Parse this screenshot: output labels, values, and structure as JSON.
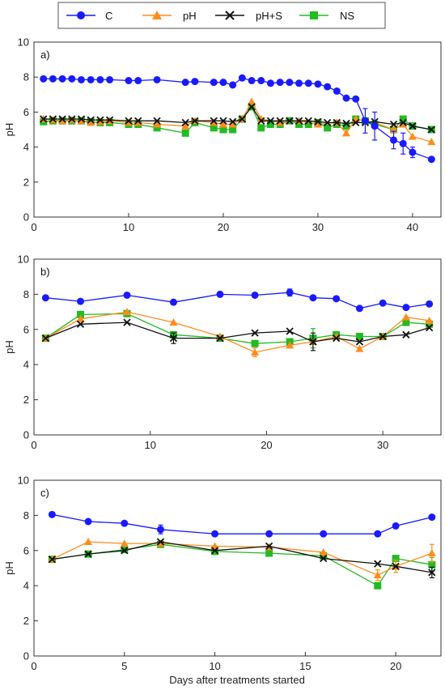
{
  "legend": [
    {
      "name": "C",
      "color": "#1a1aff",
      "marker": "circle"
    },
    {
      "name": "pH",
      "color": "#ff8c1a",
      "marker": "triangle"
    },
    {
      "name": "pH+S",
      "color": "#111111",
      "marker": "cross"
    },
    {
      "name": "NS",
      "color": "#22bb22",
      "marker": "square"
    }
  ],
  "x_title": "Days after treatments started",
  "chart_data": [
    {
      "type": "line",
      "panel_label": "a)",
      "ylabel": "pH",
      "xlim": [
        0,
        43
      ],
      "ylim": [
        0,
        10
      ],
      "xticks": [
        0,
        10,
        20,
        30,
        40
      ],
      "yticks": [
        0,
        2,
        4,
        6,
        8,
        10
      ],
      "grid": false,
      "series": [
        {
          "name": "C",
          "x": [
            1,
            2,
            3,
            4,
            5,
            6,
            7,
            8,
            10,
            11,
            13,
            16,
            17,
            19,
            20,
            21,
            22,
            23,
            24,
            25,
            26,
            27,
            28,
            29,
            30,
            31,
            32,
            33,
            34,
            35,
            36,
            38,
            39,
            40,
            42
          ],
          "y": [
            7.9,
            7.9,
            7.9,
            7.9,
            7.85,
            7.85,
            7.85,
            7.85,
            7.8,
            7.8,
            7.85,
            7.7,
            7.75,
            7.7,
            7.7,
            7.55,
            7.95,
            7.8,
            7.8,
            7.65,
            7.7,
            7.7,
            7.65,
            7.65,
            7.6,
            7.45,
            7.2,
            6.8,
            6.75,
            5.5,
            5.2,
            4.4,
            4.2,
            3.7,
            3.3
          ],
          "err": [
            0,
            0,
            0,
            0,
            0,
            0,
            0,
            0,
            0,
            0,
            0,
            0,
            0,
            0,
            0,
            0,
            0,
            0,
            0,
            0,
            0,
            0,
            0,
            0,
            0,
            0,
            0,
            0,
            0,
            0.7,
            0.8,
            0.5,
            0.6,
            0.3,
            0
          ]
        },
        {
          "name": "pH",
          "x": [
            1,
            2,
            3,
            4,
            5,
            6,
            7,
            8,
            10,
            11,
            13,
            16,
            17,
            19,
            20,
            21,
            22,
            23,
            24,
            26,
            28,
            30,
            32,
            33,
            34,
            36,
            38,
            39,
            40,
            42
          ],
          "y": [
            5.6,
            5.55,
            5.5,
            5.55,
            5.5,
            5.4,
            5.45,
            5.5,
            5.4,
            5.4,
            5.3,
            5.2,
            5.5,
            5.4,
            5.3,
            5.3,
            5.6,
            6.6,
            5.6,
            5.4,
            5.5,
            5.3,
            5.4,
            4.8,
            5.6,
            5.4,
            5.0,
            5.3,
            4.6,
            4.3
          ],
          "err": []
        },
        {
          "name": "pH+S",
          "x": [
            1,
            2,
            3,
            4,
            5,
            6,
            7,
            8,
            10,
            11,
            13,
            16,
            17,
            19,
            20,
            21,
            22,
            23,
            24,
            25,
            26,
            27,
            28,
            29,
            30,
            31,
            32,
            33,
            34,
            35,
            36,
            38,
            39,
            40,
            42
          ],
          "y": [
            5.6,
            5.6,
            5.6,
            5.6,
            5.6,
            5.55,
            5.55,
            5.55,
            5.5,
            5.5,
            5.5,
            5.4,
            5.5,
            5.5,
            5.5,
            5.45,
            5.6,
            6.3,
            5.5,
            5.5,
            5.5,
            5.5,
            5.5,
            5.5,
            5.45,
            5.4,
            5.4,
            5.35,
            5.4,
            5.4,
            5.45,
            5.3,
            5.4,
            5.2,
            5.0
          ],
          "err": []
        },
        {
          "name": "NS",
          "x": [
            1,
            2,
            3,
            4,
            5,
            6,
            7,
            8,
            10,
            11,
            13,
            16,
            17,
            19,
            20,
            21,
            22,
            23,
            24,
            25,
            26,
            27,
            28,
            29,
            30,
            31,
            32,
            33,
            34,
            35,
            36,
            38,
            39,
            40,
            42
          ],
          "y": [
            5.45,
            5.5,
            5.5,
            5.5,
            5.5,
            5.45,
            5.4,
            5.4,
            5.3,
            5.3,
            5.1,
            4.8,
            5.4,
            5.1,
            5.0,
            5.0,
            5.6,
            6.3,
            5.1,
            5.3,
            5.3,
            5.5,
            5.3,
            5.3,
            5.4,
            5.1,
            5.3,
            5.2,
            5.6,
            5.5,
            5.3,
            5.0,
            5.6,
            5.2,
            5.0
          ],
          "err": []
        }
      ]
    },
    {
      "type": "line",
      "panel_label": "b)",
      "ylabel": "pH",
      "xlim": [
        0,
        35
      ],
      "ylim": [
        0,
        10
      ],
      "xticks": [
        0,
        10,
        20,
        30
      ],
      "yticks": [
        0,
        2,
        4,
        6,
        8,
        10
      ],
      "grid": false,
      "series": [
        {
          "name": "C",
          "x": [
            1,
            4,
            8,
            12,
            16,
            19,
            22,
            24,
            26,
            28,
            30,
            32,
            34
          ],
          "y": [
            7.8,
            7.6,
            7.95,
            7.55,
            8.0,
            7.95,
            8.1,
            7.8,
            7.75,
            7.2,
            7.5,
            7.25,
            7.45
          ],
          "err": [
            0,
            0,
            0,
            0,
            0,
            0,
            0.2,
            0,
            0,
            0,
            0,
            0,
            0
          ]
        },
        {
          "name": "pH",
          "x": [
            1,
            4,
            8,
            12,
            16,
            19,
            22,
            24,
            26,
            28,
            30,
            32,
            34
          ],
          "y": [
            5.5,
            6.6,
            7.0,
            6.4,
            5.6,
            4.7,
            5.1,
            5.3,
            5.6,
            4.9,
            5.6,
            6.7,
            6.5
          ],
          "err": [
            0,
            0,
            0,
            0,
            0,
            0.25,
            0,
            0,
            0,
            0,
            0,
            0,
            0
          ]
        },
        {
          "name": "pH+S",
          "x": [
            1,
            4,
            8,
            12,
            16,
            19,
            22,
            24,
            26,
            28,
            30,
            32,
            34
          ],
          "y": [
            5.5,
            6.3,
            6.4,
            5.5,
            5.5,
            5.8,
            5.9,
            5.3,
            5.5,
            5.3,
            5.6,
            5.7,
            6.1
          ],
          "err": [
            0,
            0,
            0,
            0.3,
            0,
            0,
            0,
            0.5,
            0,
            0,
            0,
            0,
            0
          ]
        },
        {
          "name": "NS",
          "x": [
            1,
            4,
            8,
            12,
            16,
            19,
            22,
            24,
            26,
            28,
            30,
            32,
            34
          ],
          "y": [
            5.5,
            6.85,
            6.9,
            5.7,
            5.5,
            5.2,
            5.3,
            5.5,
            5.7,
            5.6,
            5.6,
            6.4,
            6.3
          ],
          "err": [
            0,
            0,
            0,
            0,
            0,
            0,
            0,
            0.55,
            0,
            0,
            0,
            0,
            0
          ]
        }
      ]
    },
    {
      "type": "line",
      "panel_label": "c)",
      "ylabel": "pH",
      "xlim": [
        0,
        22.5
      ],
      "ylim": [
        0,
        10
      ],
      "xticks": [
        0,
        5,
        10,
        15,
        20
      ],
      "yticks": [
        0,
        2,
        4,
        6,
        8,
        10
      ],
      "grid": false,
      "series": [
        {
          "name": "C",
          "x": [
            1,
            3,
            5,
            7,
            10,
            13,
            16,
            19,
            20,
            22
          ],
          "y": [
            8.05,
            7.65,
            7.55,
            7.2,
            6.95,
            6.95,
            6.95,
            6.95,
            7.4,
            7.9
          ],
          "err": [
            0,
            0,
            0,
            0.25,
            0,
            0,
            0,
            0,
            0,
            0
          ]
        },
        {
          "name": "pH",
          "x": [
            1,
            3,
            5,
            7,
            10,
            13,
            16,
            19,
            20,
            22
          ],
          "y": [
            5.5,
            6.5,
            6.4,
            6.4,
            6.25,
            6.2,
            5.9,
            4.6,
            5.1,
            5.85
          ],
          "err": [
            0,
            0,
            0,
            0,
            0,
            0,
            0,
            0.3,
            0.35,
            0.5
          ]
        },
        {
          "name": "pH+S",
          "x": [
            1,
            3,
            5,
            7,
            10,
            13,
            16,
            19,
            20,
            22
          ],
          "y": [
            5.5,
            5.8,
            6.0,
            6.5,
            6.0,
            6.25,
            5.55,
            5.25,
            5.1,
            4.75
          ],
          "err": [
            0,
            0,
            0,
            0,
            0,
            0,
            0,
            0,
            0,
            0.3
          ]
        },
        {
          "name": "NS",
          "x": [
            1,
            3,
            5,
            7,
            10,
            13,
            16,
            19,
            20,
            22
          ],
          "y": [
            5.5,
            5.8,
            6.05,
            6.35,
            5.95,
            5.85,
            5.7,
            4.0,
            5.55,
            5.2
          ],
          "err": [
            0,
            0,
            0,
            0,
            0,
            0,
            0,
            0,
            0,
            0.4
          ]
        }
      ]
    }
  ]
}
